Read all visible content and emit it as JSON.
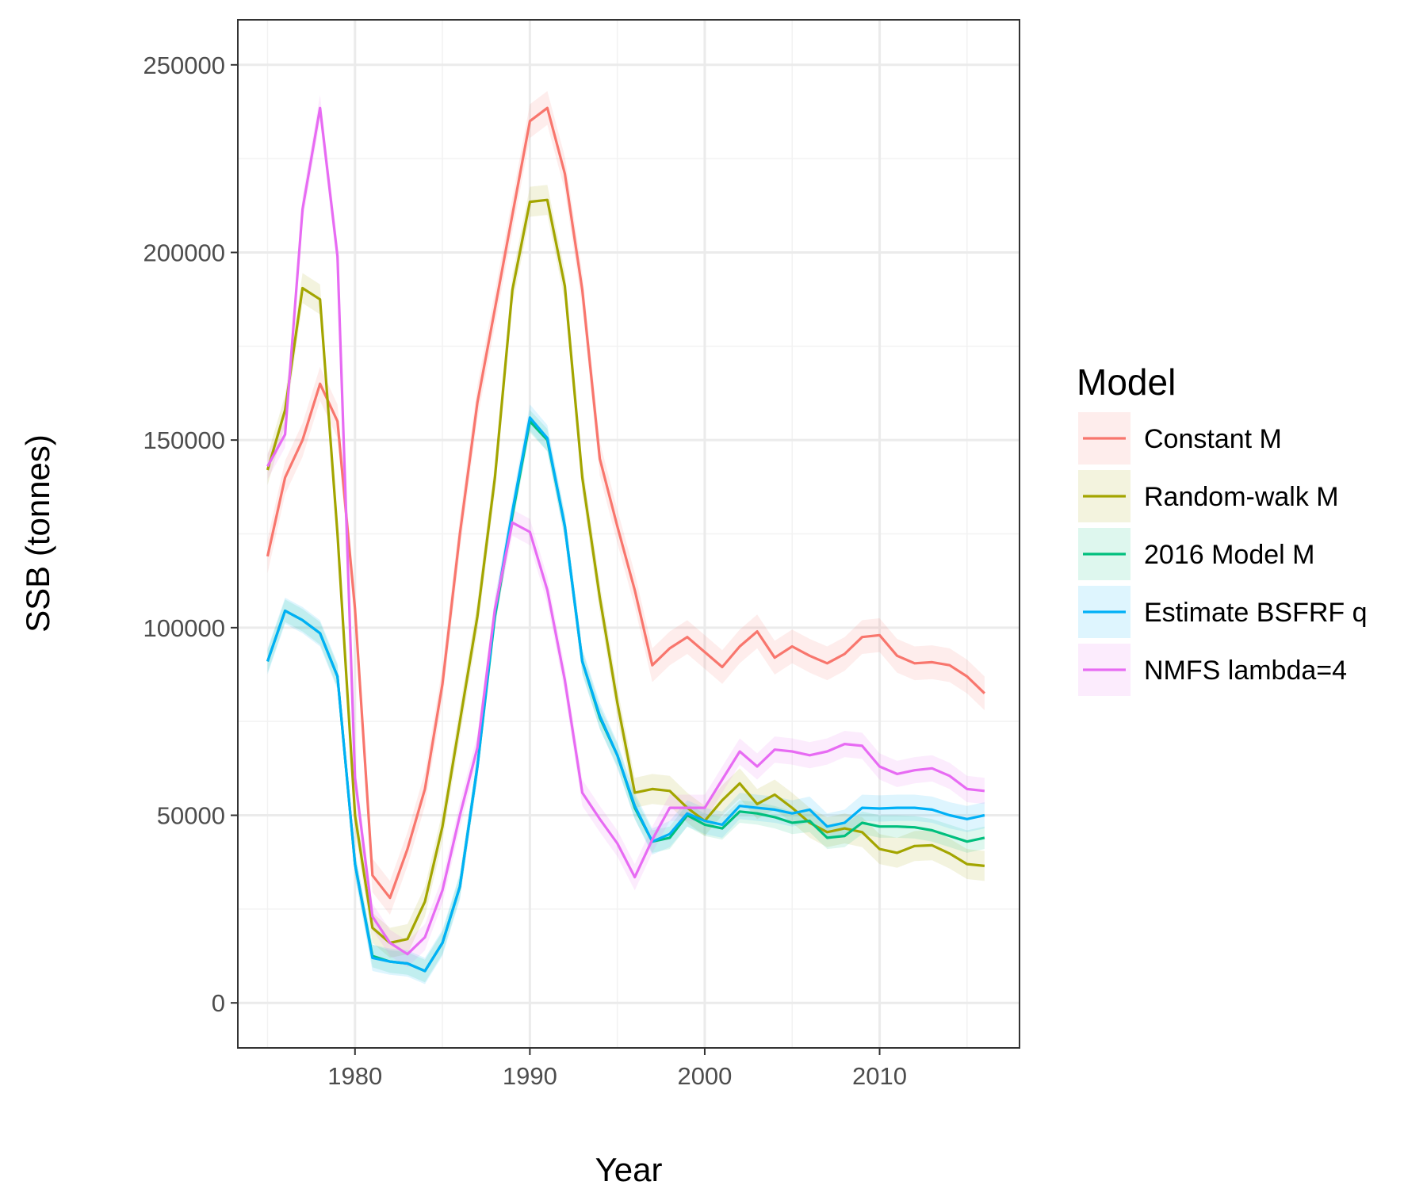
{
  "chart_data": {
    "type": "line",
    "xlabel": "Year",
    "ylabel": "SSB (tonnes)",
    "xlim": [
      1973.3,
      2018
    ],
    "ylim": [
      -12000,
      262000
    ],
    "x_ticks": [
      1980,
      1990,
      2000,
      2010
    ],
    "y_ticks": [
      0,
      50000,
      100000,
      150000,
      200000,
      250000
    ],
    "grid": true,
    "legend": {
      "title": "Model",
      "placement": "right"
    },
    "x": [
      1975,
      1976,
      1977,
      1978,
      1979,
      1980,
      1981,
      1982,
      1983,
      1984,
      1985,
      1986,
      1987,
      1988,
      1989,
      1990,
      1991,
      1992,
      1993,
      1994,
      1995,
      1996,
      1997,
      1998,
      1999,
      2000,
      2001,
      2002,
      2003,
      2004,
      2005,
      2006,
      2007,
      2008,
      2009,
      2010,
      2011,
      2012,
      2013,
      2014,
      2015,
      2016
    ],
    "series": [
      {
        "name": "Constant M",
        "color": "#F8766D",
        "values": [
          119000,
          140000,
          150000,
          165000,
          155000,
          105000,
          34000,
          28000,
          41000,
          57000,
          85000,
          125000,
          160000,
          185000,
          210000,
          235000,
          238500,
          221000,
          190000,
          145000,
          127000,
          110000,
          90000,
          94500,
          97500,
          93500,
          89500,
          95000,
          99000,
          92000,
          95000,
          92500,
          90500,
          93000,
          97500,
          98000,
          92500,
          90500,
          90800,
          90000,
          87000,
          82500
        ],
        "band": 4500
      },
      {
        "name": "Random-walk M",
        "color": "#A3A500",
        "values": [
          142000,
          158000,
          190500,
          187500,
          125000,
          50000,
          20000,
          16000,
          17000,
          27000,
          47000,
          75000,
          103000,
          140000,
          190000,
          213500,
          214000,
          191000,
          140000,
          108000,
          80000,
          56000,
          57000,
          56500,
          52000,
          48500,
          54000,
          58500,
          53000,
          55500,
          52000,
          48000,
          45500,
          46500,
          45500,
          41000,
          40000,
          41800,
          42000,
          39800,
          37000,
          36500
        ],
        "band": 4000
      },
      {
        "name": "2016 Model M",
        "color": "#00BF7D",
        "values": [
          91000,
          104500,
          102000,
          98500,
          87000,
          37000,
          12500,
          11000,
          10500,
          8500,
          16000,
          31000,
          63000,
          103000,
          130000,
          155000,
          150000,
          127000,
          91000,
          76000,
          66000,
          52000,
          43000,
          44000,
          50000,
          47500,
          46500,
          51000,
          50500,
          49500,
          48000,
          48500,
          44000,
          44500,
          48000,
          47000,
          47000,
          46800,
          46000,
          44500,
          43000,
          44000
        ],
        "band": 3000
      },
      {
        "name": "Estimate BSFRF q",
        "color": "#00B0F6",
        "values": [
          91000,
          104500,
          102000,
          98500,
          87000,
          37000,
          12000,
          11000,
          10500,
          8500,
          16000,
          31000,
          63000,
          104000,
          131000,
          156000,
          150500,
          127000,
          91000,
          76500,
          66000,
          52500,
          43000,
          45000,
          50500,
          48500,
          47500,
          52500,
          52000,
          51500,
          50500,
          51500,
          47000,
          48000,
          52000,
          51800,
          52000,
          52000,
          51500,
          50000,
          49000,
          50000
        ],
        "band": 3500
      },
      {
        "name": "NMFS lambda=4",
        "color": "#E76BF3",
        "values": [
          143000,
          151500,
          211500,
          238500,
          199000,
          60000,
          23000,
          16000,
          13000,
          17500,
          30000,
          50000,
          68000,
          105000,
          128000,
          125500,
          110000,
          86000,
          56000,
          49000,
          42500,
          33500,
          43500,
          52000,
          52000,
          52000,
          59500,
          67000,
          63000,
          67500,
          67000,
          66000,
          67000,
          69000,
          68500,
          63000,
          61000,
          62000,
          62500,
          60500,
          57000,
          56500
        ],
        "band": 3500
      }
    ]
  }
}
